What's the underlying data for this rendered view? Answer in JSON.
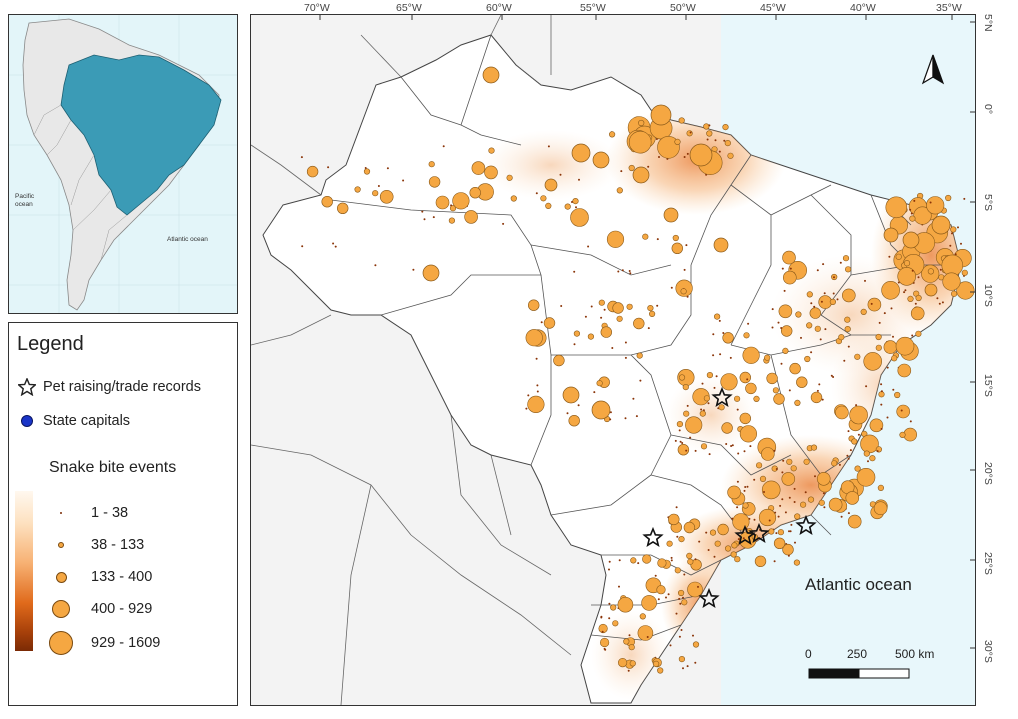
{
  "inset": {
    "pacific_label": "Pacific ocean",
    "atlantic_label": "Atlantic ocean",
    "land_color": "#e8e8e8",
    "ocean_color": "#e3f5f9",
    "highlight_color": "#3b9bb6"
  },
  "legend": {
    "title": "Legend",
    "pet_label": "Pet raising/trade records",
    "capitals_label": "State capitals",
    "snake_title": "Snake bite events",
    "classes": [
      {
        "label": "1 - 38",
        "size": 2
      },
      {
        "label": "38 - 133",
        "size": 6
      },
      {
        "label": "133 - 400",
        "size": 11
      },
      {
        "label": "400 - 929",
        "size": 18
      },
      {
        "label": "929 - 1609",
        "size": 24
      }
    ],
    "capitals_color": "#1a35c8",
    "event_color": "#f5a742"
  },
  "map": {
    "ocean_label": "Atlantic ocean",
    "scale": {
      "zero": "0",
      "mid": "250",
      "end": "500 km"
    },
    "lon_labels": [
      "70°W",
      "65°W",
      "60°W",
      "55°W",
      "50°W",
      "45°W",
      "40°W",
      "35°W"
    ],
    "lat_labels": [
      "5°N",
      "0°",
      "5°S",
      "10°S",
      "15°S",
      "20°S",
      "25°S",
      "30°S"
    ],
    "ocean_color": "#e8f7fb",
    "land_color": "#ffffff",
    "neighbour_color": "#f4f4f4",
    "heat_color": "#e8772a"
  }
}
